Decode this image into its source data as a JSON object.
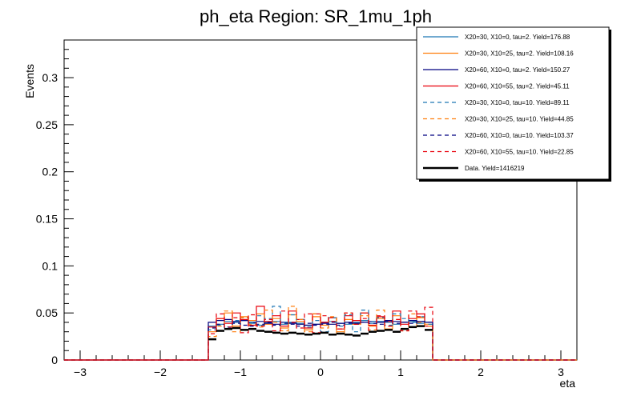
{
  "chart_data": {
    "type": "line",
    "title": "ph_eta Region: SR_1mu_1ph",
    "xlabel": "eta",
    "ylabel": "Events",
    "xlim": [
      -3.2,
      3.2
    ],
    "ylim": [
      0,
      0.34
    ],
    "xticks": [
      -3,
      -2,
      -1,
      0,
      1,
      2,
      3
    ],
    "xtick_labels": [
      "−3",
      "−2",
      "−1",
      "0",
      "1",
      "2",
      "3"
    ],
    "yticks": [
      0,
      0.05,
      0.1,
      0.15,
      0.2,
      0.25,
      0.3
    ],
    "ytick_labels": [
      "0",
      "0.05",
      "0.1",
      "0.15",
      "0.2",
      "0.25",
      "0.3"
    ],
    "grid": false,
    "legend_position": "top-right",
    "bin_edges": [
      -3.2,
      -1.4,
      -1.3,
      -1.2,
      -1.1,
      -1.0,
      -0.9,
      -0.8,
      -0.7,
      -0.6,
      -0.5,
      -0.4,
      -0.3,
      -0.2,
      -0.1,
      0.0,
      0.1,
      0.2,
      0.3,
      0.4,
      0.5,
      0.6,
      0.7,
      0.8,
      0.9,
      1.0,
      1.1,
      1.2,
      1.3,
      1.4,
      3.2
    ],
    "series": [
      {
        "name": "X20=30, X10=0, tau=2. Yield=176.88",
        "color": "#1f77b4",
        "style": "solid",
        "values": [
          0,
          0.036,
          0.038,
          0.041,
          0.04,
          0.042,
          0.039,
          0.037,
          0.04,
          0.041,
          0.038,
          0.04,
          0.039,
          0.037,
          0.038,
          0.04,
          0.041,
          0.039,
          0.038,
          0.04,
          0.042,
          0.039,
          0.041,
          0.04,
          0.038,
          0.04,
          0.041,
          0.039,
          0.04,
          0
        ]
      },
      {
        "name": "X20=30, X10=25, tau=2. Yield=108.16",
        "color": "#ff7f0e",
        "style": "solid",
        "values": [
          0,
          0.03,
          0.044,
          0.05,
          0.036,
          0.046,
          0.042,
          0.049,
          0.038,
          0.044,
          0.034,
          0.048,
          0.041,
          0.032,
          0.046,
          0.037,
          0.045,
          0.03,
          0.043,
          0.038,
          0.05,
          0.036,
          0.044,
          0.033,
          0.047,
          0.04,
          0.035,
          0.045,
          0.038,
          0
        ]
      },
      {
        "name": "X20=60, X10=0, tau=2. Yield=150.27",
        "color": "#000080",
        "style": "solid",
        "values": [
          0,
          0.04,
          0.042,
          0.043,
          0.041,
          0.042,
          0.04,
          0.041,
          0.039,
          0.038,
          0.04,
          0.039,
          0.038,
          0.037,
          0.038,
          0.039,
          0.038,
          0.039,
          0.04,
          0.039,
          0.04,
          0.041,
          0.04,
          0.042,
          0.041,
          0.04,
          0.042,
          0.041,
          0.04,
          0
        ]
      },
      {
        "name": "X20=60, X10=55, tau=2. Yield=45.11",
        "color": "#e8000b",
        "style": "solid",
        "values": [
          0,
          0.035,
          0.044,
          0.039,
          0.05,
          0.043,
          0.037,
          0.057,
          0.041,
          0.047,
          0.036,
          0.052,
          0.043,
          0.034,
          0.049,
          0.04,
          0.045,
          0.033,
          0.047,
          0.042,
          0.05,
          0.037,
          0.046,
          0.041,
          0.052,
          0.038,
          0.044,
          0.049,
          0.036,
          0
        ]
      },
      {
        "name": "X20=30, X10=0, tau=10. Yield=89.11",
        "color": "#1f77b4",
        "style": "dashed",
        "values": [
          0,
          0.032,
          0.037,
          0.034,
          0.042,
          0.045,
          0.04,
          0.047,
          0.044,
          0.057,
          0.04,
          0.048,
          0.043,
          0.035,
          0.042,
          0.03,
          0.045,
          0.036,
          0.048,
          0.03,
          0.053,
          0.041,
          0.045,
          0.037,
          0.049,
          0.044,
          0.04,
          0.046,
          0.038,
          0
        ]
      },
      {
        "name": "X20=30, X10=25, tau=10. Yield=44.85",
        "color": "#ff7f0e",
        "style": "dashed",
        "values": [
          0,
          0.025,
          0.036,
          0.052,
          0.03,
          0.045,
          0.038,
          0.035,
          0.053,
          0.04,
          0.031,
          0.057,
          0.043,
          0.03,
          0.049,
          0.034,
          0.046,
          0.028,
          0.05,
          0.038,
          0.047,
          0.032,
          0.053,
          0.036,
          0.043,
          0.031,
          0.049,
          0.04,
          0.036,
          0
        ]
      },
      {
        "name": "X20=60, X10=0, tau=10. Yield=103.37",
        "color": "#000080",
        "style": "dashed",
        "values": [
          0,
          0.034,
          0.038,
          0.035,
          0.039,
          0.037,
          0.036,
          0.038,
          0.04,
          0.037,
          0.039,
          0.038,
          0.036,
          0.039,
          0.037,
          0.038,
          0.04,
          0.037,
          0.039,
          0.038,
          0.04,
          0.039,
          0.038,
          0.041,
          0.039,
          0.04,
          0.039,
          0.041,
          0.04,
          0
        ]
      },
      {
        "name": "X20=60, X10=55, tau=10. Yield=22.85",
        "color": "#e8000b",
        "style": "dashed",
        "values": [
          0,
          0.028,
          0.049,
          0.035,
          0.045,
          0.029,
          0.048,
          0.036,
          0.043,
          0.031,
          0.052,
          0.04,
          0.034,
          0.049,
          0.029,
          0.047,
          0.041,
          0.033,
          0.05,
          0.038,
          0.044,
          0.03,
          0.047,
          0.036,
          0.043,
          0.031,
          0.052,
          0.046,
          0.056,
          0
        ]
      },
      {
        "name": "Data. Yield=1416219",
        "color": "#000000",
        "style": "data",
        "values": [
          0,
          0.022,
          0.031,
          0.033,
          0.034,
          0.032,
          0.033,
          0.031,
          0.03,
          0.029,
          0.028,
          0.029,
          0.028,
          0.027,
          0.028,
          0.029,
          0.027,
          0.028,
          0.027,
          0.026,
          0.028,
          0.03,
          0.031,
          0.032,
          0.03,
          0.033,
          0.035,
          0.036,
          0.032,
          0
        ]
      }
    ]
  }
}
